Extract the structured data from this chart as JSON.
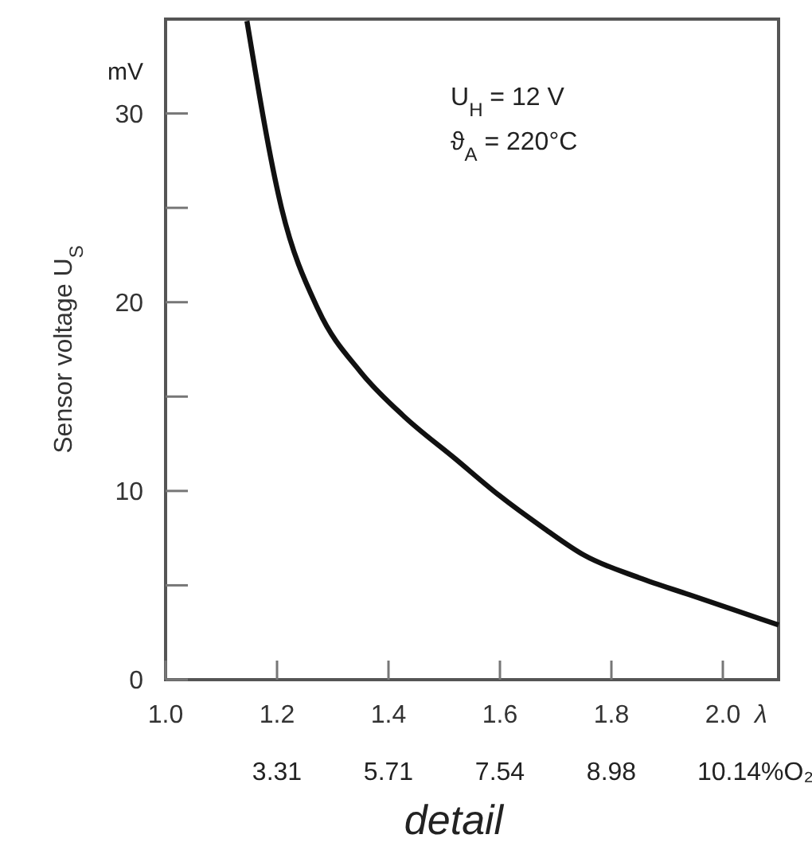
{
  "chart_data": {
    "type": "line",
    "xlabel": "λ",
    "ylabel": "Sensor voltage U$_{S}$",
    "x": [
      1.146,
      1.208,
      1.274,
      1.35,
      1.426,
      1.52,
      1.597,
      1.68,
      1.751,
      1.85,
      1.94,
      2.02,
      2.1
    ],
    "series": [
      {
        "color": "#111111",
        "values": [
          34.9,
          25.0,
          19.6,
          16.3,
          14.0,
          11.7,
          9.8,
          8.0,
          6.6,
          5.4,
          4.5,
          3.7,
          2.9
        ]
      }
    ],
    "xlim": [
      1.0,
      2.1
    ],
    "xticks": [
      {
        "value": 1.0,
        "label": "1.0"
      },
      {
        "value": 1.2,
        "label": "1.2"
      },
      {
        "value": 1.4,
        "label": "1.4"
      },
      {
        "value": 1.6,
        "label": "1.6"
      },
      {
        "value": 1.8,
        "label": "1.8"
      },
      {
        "value": 2.0,
        "label": "2.0"
      }
    ],
    "ylim": [
      0,
      35
    ],
    "yticks": [
      0,
      {
        "value": 5,
        "label": null
      },
      10,
      {
        "value": 15,
        "label": null
      },
      20,
      {
        "value": 25,
        "label": null
      },
      30
    ],
    "grid": false,
    "line_style": "solid",
    "annotations": [
      "mV",
      "U$_{H}$ = 12 V",
      "ϑ$_{A}$ = 220°C",
      "detail",
      "3.31",
      "5.71",
      "7.54",
      "8.98",
      "10.14%O₂"
    ]
  }
}
